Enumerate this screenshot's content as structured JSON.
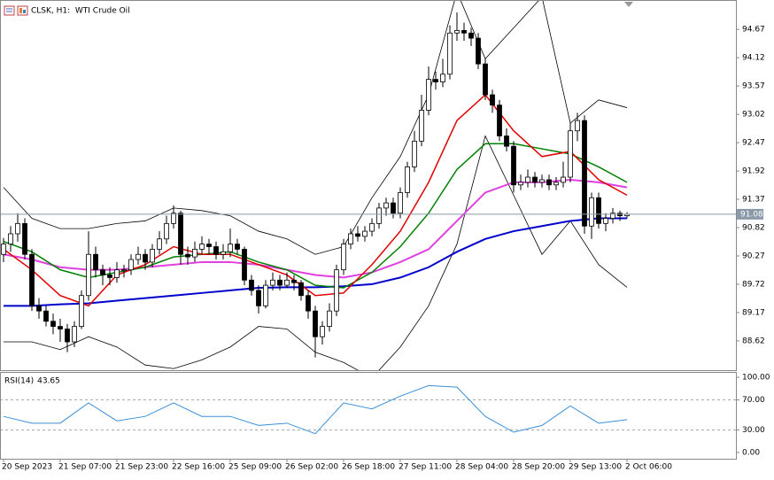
{
  "chart_data": [
    {
      "type": "candlestick",
      "title": "CLSK, H1:  WTI Crude Oil",
      "categories": [
        "20 Sep 2023",
        null,
        null,
        null,
        null,
        null,
        null,
        null,
        "21 Sep 07:00",
        null,
        null,
        null,
        null,
        null,
        null,
        null,
        "21 Sep 23:00",
        null,
        null,
        null,
        null,
        null,
        null,
        null,
        "22 Sep 16:00",
        null,
        null,
        null,
        null,
        null,
        null,
        null,
        "25 Sep 09:00",
        null,
        null,
        null,
        null,
        null,
        null,
        null,
        "26 Sep 02:00",
        null,
        null,
        null,
        null,
        null,
        null,
        null,
        "26 Sep 18:00",
        null,
        null,
        null,
        null,
        null,
        null,
        null,
        "27 Sep 11:00",
        null,
        null,
        null,
        null,
        null,
        null,
        null,
        "28 Sep 04:00",
        null,
        null,
        null,
        null,
        null,
        null,
        null,
        "28 Sep 20:00",
        null,
        null,
        null,
        null,
        null,
        null,
        null,
        "29 Sep 13:00",
        null,
        null,
        null,
        null,
        null,
        null,
        null,
        "2 Oct 06:00"
      ],
      "open": [
        90.3,
        90.5,
        90.7,
        90.9,
        90.3,
        89.3,
        89.2,
        89.0,
        88.9,
        88.85,
        88.6,
        88.9,
        89.5,
        90.3,
        90.0,
        89.9,
        89.85,
        90.0,
        90.0,
        90.2,
        90.3,
        90.15,
        90.4,
        90.6,
        90.9,
        91.1,
        90.3,
        90.25,
        90.4,
        90.5,
        90.45,
        90.3,
        90.35,
        90.5,
        90.4,
        89.8,
        89.6,
        89.3,
        89.7,
        89.8,
        89.7,
        89.8,
        89.75,
        89.5,
        89.2,
        88.7,
        88.9,
        89.2,
        90.0,
        90.5,
        90.7,
        90.65,
        90.75,
        90.9,
        91.2,
        91.3,
        91.1,
        91.5,
        92.0,
        92.5,
        93.1,
        93.7,
        93.65,
        93.8,
        94.6,
        94.65,
        94.6,
        94.5,
        94.0,
        93.4,
        93.2,
        92.6,
        92.4,
        91.65,
        91.7,
        91.8,
        91.7,
        91.75,
        91.65,
        91.7,
        91.8,
        92.7,
        92.9,
        90.85,
        91.4,
        90.9,
        91.0,
        91.1,
        91.05
      ],
      "high": [
        90.62,
        90.85,
        91.1,
        91.0,
        90.4,
        89.45,
        89.3,
        89.15,
        89.05,
        88.95,
        89.0,
        89.6,
        90.75,
        90.45,
        90.1,
        90.05,
        90.15,
        90.1,
        90.3,
        90.45,
        90.4,
        90.5,
        90.75,
        91.05,
        91.25,
        91.15,
        90.45,
        90.55,
        90.65,
        90.6,
        90.55,
        90.5,
        90.8,
        90.6,
        90.45,
        89.9,
        89.7,
        89.8,
        89.95,
        89.9,
        89.95,
        89.9,
        89.8,
        89.6,
        89.3,
        89.0,
        89.35,
        90.1,
        90.6,
        90.8,
        90.85,
        90.85,
        91.0,
        91.3,
        91.4,
        91.4,
        91.6,
        92.1,
        92.7,
        93.4,
        93.95,
        93.85,
        94.1,
        94.75,
        95.0,
        94.8,
        94.7,
        94.6,
        94.1,
        93.5,
        93.3,
        92.75,
        92.5,
        91.85,
        91.95,
        91.9,
        91.85,
        91.85,
        91.8,
        92.1,
        92.85,
        93.05,
        93.0,
        91.5,
        91.5,
        91.1,
        91.2,
        91.15,
        91.12
      ],
      "low": [
        90.15,
        90.35,
        90.55,
        90.2,
        89.2,
        89.05,
        88.9,
        88.75,
        88.6,
        88.4,
        88.5,
        88.85,
        89.4,
        89.85,
        89.7,
        89.7,
        89.75,
        89.85,
        89.9,
        90.1,
        90.0,
        90.05,
        90.3,
        90.5,
        90.8,
        90.1,
        90.1,
        90.15,
        90.3,
        90.3,
        90.2,
        90.2,
        90.25,
        90.3,
        89.7,
        89.5,
        89.15,
        89.25,
        89.6,
        89.6,
        89.65,
        89.6,
        89.4,
        89.05,
        88.3,
        88.55,
        88.8,
        89.1,
        89.9,
        90.4,
        90.55,
        90.55,
        90.65,
        90.8,
        91.05,
        91.0,
        91.0,
        91.4,
        91.9,
        92.4,
        93.0,
        93.5,
        93.55,
        93.7,
        94.45,
        94.45,
        94.35,
        93.9,
        93.3,
        93.05,
        92.5,
        92.3,
        91.5,
        91.55,
        91.6,
        91.6,
        91.6,
        91.55,
        91.55,
        91.6,
        91.7,
        92.5,
        90.7,
        90.6,
        90.8,
        90.75,
        90.9,
        90.95,
        91.0
      ],
      "close": [
        90.5,
        90.7,
        90.9,
        90.3,
        89.3,
        89.2,
        89.0,
        88.9,
        88.85,
        88.6,
        88.9,
        89.5,
        90.3,
        90.0,
        89.9,
        89.85,
        90.0,
        90.0,
        90.2,
        90.3,
        90.15,
        90.4,
        90.6,
        90.9,
        91.1,
        90.3,
        90.25,
        90.4,
        90.5,
        90.45,
        90.3,
        90.35,
        90.5,
        90.4,
        89.8,
        89.6,
        89.3,
        89.7,
        89.8,
        89.7,
        89.8,
        89.75,
        89.5,
        89.2,
        88.7,
        88.9,
        89.2,
        90.0,
        90.5,
        90.7,
        90.65,
        90.75,
        90.9,
        91.2,
        91.3,
        91.1,
        91.5,
        92.0,
        92.5,
        93.1,
        93.7,
        93.65,
        93.8,
        94.6,
        94.65,
        94.6,
        94.5,
        94.0,
        93.4,
        93.2,
        92.6,
        92.4,
        91.65,
        91.7,
        91.8,
        91.7,
        91.75,
        91.65,
        91.7,
        91.8,
        92.7,
        92.9,
        90.85,
        91.4,
        90.9,
        91.0,
        91.1,
        91.05,
        91.08
      ],
      "ylim": [
        88.05,
        95.19
      ],
      "yticks": [
        94.67,
        94.12,
        93.57,
        93.02,
        92.47,
        91.92,
        91.37,
        90.82,
        90.27,
        89.72,
        89.17,
        88.62
      ],
      "last_price": {
        "value": 91.08,
        "label": "91.08"
      },
      "overlay_x": [
        0,
        4,
        8,
        12,
        16,
        20,
        24,
        28,
        32,
        36,
        40,
        44,
        48,
        52,
        56,
        60,
        64,
        68,
        72,
        76,
        80,
        84,
        88
      ],
      "overlays": [
        {
          "color": "#000000",
          "line_width": 0.8,
          "values": [
            91.6,
            91.0,
            90.8,
            90.8,
            90.9,
            90.95,
            91.2,
            91.15,
            91.05,
            90.75,
            90.6,
            90.3,
            90.45,
            91.4,
            92.2,
            93.4,
            95.4,
            94.1,
            94.7,
            95.3,
            92.85,
            93.3,
            93.15
          ]
        },
        {
          "color": "#000000",
          "line_width": 0.8,
          "values": [
            88.6,
            88.6,
            88.45,
            88.7,
            88.5,
            88.15,
            88.08,
            88.25,
            88.5,
            88.9,
            88.85,
            88.4,
            88.2,
            87.9,
            88.5,
            89.3,
            90.5,
            92.6,
            91.45,
            90.3,
            90.95,
            90.1,
            89.66
          ]
        },
        {
          "color": "#0000cc",
          "line_width": 2,
          "values": [
            89.3,
            89.3,
            89.33,
            89.35,
            89.4,
            89.45,
            89.5,
            89.55,
            89.6,
            89.65,
            89.66,
            89.66,
            89.68,
            89.72,
            89.85,
            90.05,
            90.35,
            90.6,
            90.75,
            90.85,
            90.95,
            91.0,
            91.0
          ]
        },
        {
          "color": "#e040e0",
          "line_width": 2,
          "values": [
            90.3,
            90.2,
            90.05,
            90.0,
            90.0,
            90.05,
            90.1,
            90.15,
            90.15,
            90.1,
            90.0,
            89.9,
            89.85,
            89.95,
            90.15,
            90.4,
            90.95,
            91.5,
            91.7,
            91.7,
            91.75,
            91.7,
            91.6
          ]
        },
        {
          "color": "#008000",
          "line_width": 1.5,
          "values": [
            90.55,
            90.35,
            90.0,
            89.85,
            89.95,
            90.05,
            90.25,
            90.3,
            90.35,
            90.15,
            90.0,
            89.7,
            89.65,
            89.95,
            90.45,
            91.1,
            91.95,
            92.45,
            92.45,
            92.35,
            92.25,
            92.0,
            91.7
          ]
        },
        {
          "color": "#e00000",
          "line_width": 1.5,
          "values": [
            90.4,
            90.0,
            89.5,
            89.3,
            89.9,
            90.1,
            90.45,
            90.3,
            90.3,
            90.1,
            89.9,
            89.5,
            89.55,
            90.1,
            90.75,
            91.7,
            92.9,
            93.4,
            92.7,
            92.2,
            92.3,
            91.75,
            91.45
          ]
        }
      ]
    },
    {
      "type": "line",
      "title": "RSI(14)",
      "x": [
        0,
        4,
        8,
        12,
        16,
        20,
        24,
        28,
        32,
        36,
        40,
        44,
        48,
        52,
        56,
        60,
        64,
        68,
        72,
        76,
        80,
        84,
        88
      ],
      "values": [
        48,
        39,
        39,
        66,
        42,
        48,
        66,
        48,
        48,
        36,
        39,
        25,
        66,
        58,
        75,
        89,
        87,
        48,
        27,
        36,
        62,
        39,
        43.65
      ],
      "color": "#3a8fd8",
      "ylim": [
        -6,
        106
      ],
      "yticks": [
        {
          "value": 100,
          "label": "100.00"
        },
        {
          "value": 70,
          "label": "70.00"
        },
        {
          "value": 30,
          "label": "30.00"
        },
        {
          "value": 0,
          "label": "0.00"
        }
      ],
      "levels": [
        70,
        30
      ]
    }
  ]
}
